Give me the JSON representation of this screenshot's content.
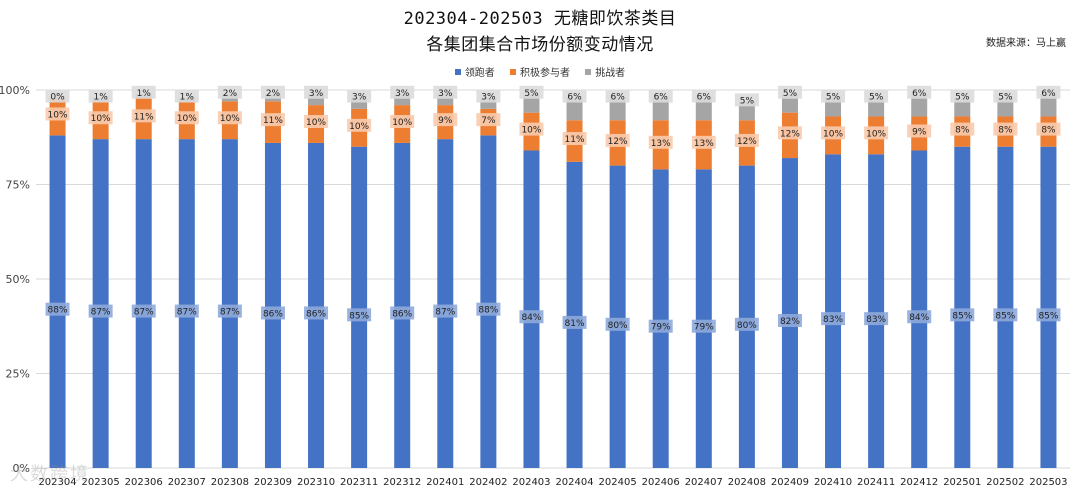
{
  "title": {
    "line1": "202304-202503 无糖即饮茶类目",
    "line2": "各集团集合市场份额变动情况"
  },
  "source_note": "数据来源：马上赢",
  "watermark": "大数跨境",
  "colors": {
    "leader": "#4472C4",
    "active": "#ED7D31",
    "challenger": "#A5A5A5",
    "label_box_leader": "#8FAADC",
    "label_box_active": "#F8CBAD",
    "label_box_challenger": "#DBDBDB"
  },
  "chart_data": {
    "type": "bar",
    "stacked": true,
    "categories": [
      "202304",
      "202305",
      "202306",
      "202307",
      "202308",
      "202309",
      "202310",
      "202311",
      "202312",
      "202401",
      "202402",
      "202403",
      "202404",
      "202405",
      "202406",
      "202407",
      "202408",
      "202409",
      "202410",
      "202411",
      "202412",
      "202501",
      "202502",
      "202503"
    ],
    "series": [
      {
        "name": "领跑者",
        "values": [
          88,
          87,
          87,
          87,
          87,
          86,
          86,
          85,
          86,
          87,
          88,
          84,
          81,
          80,
          79,
          79,
          80,
          82,
          83,
          83,
          84,
          85,
          85,
          85
        ],
        "labels": [
          "88%",
          "87%",
          "87%",
          "87%",
          "87%",
          "86%",
          "86%",
          "85%",
          "86%",
          "87%",
          "88%",
          "84%",
          "81%",
          "80%",
          "79%",
          "79%",
          "80%",
          "82%",
          "83%",
          "83%",
          "84%",
          "85%",
          "85%",
          "85%"
        ]
      },
      {
        "name": "积极参与者",
        "values": [
          10,
          10,
          11,
          10,
          10,
          11,
          10,
          10,
          10,
          9,
          7,
          10,
          11,
          12,
          13,
          13,
          12,
          12,
          10,
          10,
          9,
          8,
          8,
          8
        ],
        "labels": [
          "10%",
          "10%",
          "11%",
          "10%",
          "10%",
          "11%",
          "10%",
          "10%",
          "10%",
          "9%",
          "7%",
          "10%",
          "11%",
          "12%",
          "13%",
          "13%",
          "12%",
          "12%",
          "10%",
          "10%",
          "9%",
          "8%",
          "8%",
          "8%"
        ]
      },
      {
        "name": "挑战者",
        "values": [
          0,
          1,
          1,
          1,
          2,
          2,
          3,
          3,
          3,
          3,
          3,
          5,
          6,
          6,
          6,
          6,
          5,
          5,
          5,
          5,
          6,
          5,
          5,
          6
        ],
        "labels": [
          "0%",
          "1%",
          "1%",
          "1%",
          "2%",
          "2%",
          "3%",
          "3%",
          "3%",
          "3%",
          "3%",
          "5%",
          "6%",
          "6%",
          "6%",
          "6%",
          "5%",
          "5%",
          "5%",
          "5%",
          "6%",
          "5%",
          "5%",
          "6%"
        ]
      }
    ],
    "ylim": [
      0,
      100
    ],
    "yticks": [
      0,
      25,
      50,
      75,
      100
    ],
    "ytick_labels": [
      "0%",
      "25%",
      "50%",
      "75%",
      "100%"
    ],
    "grid": true,
    "legend_position": "top-center"
  }
}
